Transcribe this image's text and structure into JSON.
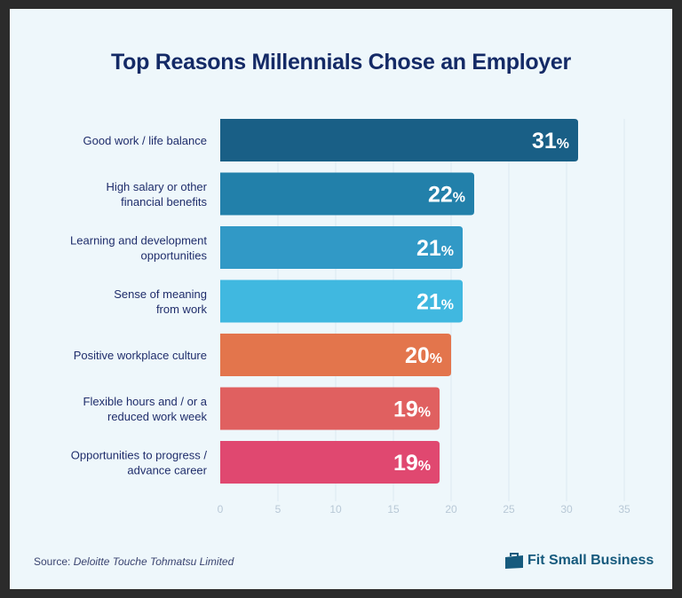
{
  "chart_data": {
    "type": "bar",
    "orientation": "horizontal",
    "title": "Top Reasons Millennials Chose an Employer",
    "categories": [
      [
        "Good work / life balance"
      ],
      [
        "High salary or other",
        "financial benefits"
      ],
      [
        "Learning and development",
        "opportunities"
      ],
      [
        "Sense of meaning",
        "from work"
      ],
      [
        "Positive workplace culture"
      ],
      [
        "Flexible hours and / or a",
        "reduced work week"
      ],
      [
        "Opportunities to progress /",
        "advance career"
      ]
    ],
    "values": [
      31,
      22,
      21,
      21,
      20,
      19,
      19
    ],
    "value_suffix": "%",
    "colors": [
      "#195f86",
      "#2280aa",
      "#3199c6",
      "#40b8e0",
      "#e3754c",
      "#e06060",
      "#e04870"
    ],
    "xlim": [
      0,
      35
    ],
    "xticks": [
      0,
      5,
      10,
      15,
      20,
      25,
      30,
      35
    ],
    "grid": true,
    "xlabel": "",
    "ylabel": ""
  },
  "footer": {
    "source_label": "Source: ",
    "source_name": "Deloitte Touche Tohmatsu Limited",
    "brand": "Fit Small Business",
    "brand_icon": "briefcase-icon"
  }
}
